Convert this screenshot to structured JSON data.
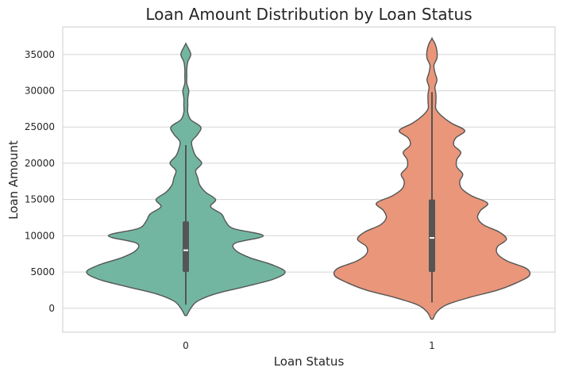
{
  "chart_data": {
    "type": "violin",
    "title": "Loan Amount Distribution by Loan Status",
    "xlabel": "Loan Status",
    "ylabel": "Loan Amount",
    "categories": [
      "0",
      "1"
    ],
    "y_ticks": [
      0,
      5000,
      10000,
      15000,
      20000,
      25000,
      30000,
      35000
    ],
    "y_tick_labels": [
      "0",
      "5000",
      "10000",
      "15000",
      "20000",
      "25000",
      "30000",
      "35000"
    ],
    "ylim": [
      -3300,
      38800
    ],
    "grid": "horizontal",
    "series": [
      {
        "category": "0",
        "color": "#72b6a1",
        "min": 500,
        "q1": 5000,
        "median": 8000,
        "q3": 12000,
        "whisker_high": 22500,
        "density": [
          [
            -1000,
            0.01
          ],
          [
            0,
            0.05
          ],
          [
            1000,
            0.12
          ],
          [
            2000,
            0.3
          ],
          [
            3000,
            0.6
          ],
          [
            4000,
            0.88
          ],
          [
            5000,
            1.0
          ],
          [
            6000,
            0.87
          ],
          [
            7000,
            0.64
          ],
          [
            8000,
            0.5
          ],
          [
            9000,
            0.5
          ],
          [
            10000,
            0.78
          ],
          [
            11000,
            0.48
          ],
          [
            12000,
            0.4
          ],
          [
            13000,
            0.36
          ],
          [
            14000,
            0.25
          ],
          [
            15000,
            0.3
          ],
          [
            16000,
            0.2
          ],
          [
            17000,
            0.14
          ],
          [
            18000,
            0.12
          ],
          [
            19000,
            0.1
          ],
          [
            20000,
            0.16
          ],
          [
            21000,
            0.1
          ],
          [
            22000,
            0.07
          ],
          [
            23000,
            0.06
          ],
          [
            24000,
            0.12
          ],
          [
            25000,
            0.15
          ],
          [
            26000,
            0.05
          ],
          [
            27000,
            0.02
          ],
          [
            28000,
            0.02
          ],
          [
            29000,
            0.02
          ],
          [
            30000,
            0.03
          ],
          [
            31000,
            0.01
          ],
          [
            32000,
            0.01
          ],
          [
            33000,
            0.01
          ],
          [
            34000,
            0.02
          ],
          [
            35000,
            0.05
          ],
          [
            36000,
            0.02
          ],
          [
            36500,
            0.0
          ]
        ]
      },
      {
        "category": "1",
        "color": "#e9967a",
        "min": 800,
        "q1": 5000,
        "median": 9700,
        "q3": 15000,
        "whisker_high": 29800,
        "density": [
          [
            -1500,
            0.01
          ],
          [
            -500,
            0.05
          ],
          [
            500,
            0.15
          ],
          [
            1500,
            0.38
          ],
          [
            2500,
            0.66
          ],
          [
            3500,
            0.85
          ],
          [
            4500,
            0.98
          ],
          [
            5500,
            0.95
          ],
          [
            6500,
            0.76
          ],
          [
            7500,
            0.66
          ],
          [
            8500,
            0.66
          ],
          [
            9500,
            0.75
          ],
          [
            10500,
            0.68
          ],
          [
            11500,
            0.52
          ],
          [
            12500,
            0.46
          ],
          [
            13500,
            0.49
          ],
          [
            14500,
            0.56
          ],
          [
            15500,
            0.4
          ],
          [
            16500,
            0.3
          ],
          [
            17500,
            0.28
          ],
          [
            18500,
            0.31
          ],
          [
            19500,
            0.25
          ],
          [
            20500,
            0.25
          ],
          [
            21500,
            0.29
          ],
          [
            22500,
            0.22
          ],
          [
            23500,
            0.24
          ],
          [
            24500,
            0.33
          ],
          [
            25500,
            0.2
          ],
          [
            26500,
            0.1
          ],
          [
            27500,
            0.04
          ],
          [
            28500,
            0.04
          ],
          [
            29500,
            0.04
          ],
          [
            30500,
            0.03
          ],
          [
            31500,
            0.05
          ],
          [
            32500,
            0.03
          ],
          [
            33500,
            0.02
          ],
          [
            34500,
            0.05
          ],
          [
            35500,
            0.05
          ],
          [
            36500,
            0.03
          ],
          [
            37200,
            0.0
          ]
        ]
      }
    ]
  }
}
